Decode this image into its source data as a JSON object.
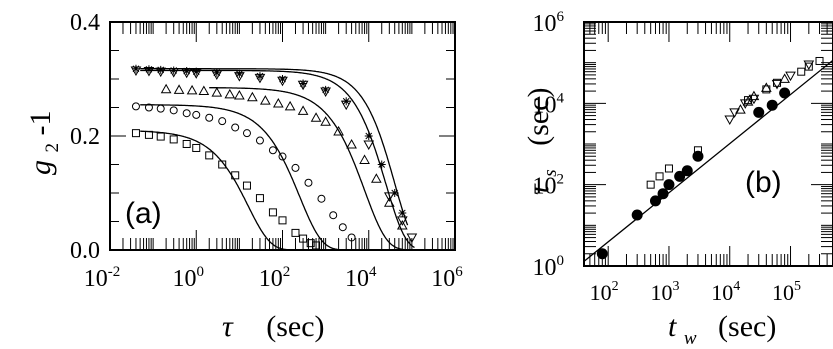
{
  "chart_data": [
    {
      "type": "scatter",
      "panel_label": "(a)",
      "xlabel": {
        "symbol": "τ",
        "unit": "(sec)"
      },
      "ylabel": {
        "base": "g",
        "subscript": "2",
        "suffix": "-1"
      },
      "xscale": "log",
      "yscale": "linear",
      "xlim": [
        0.01,
        1000000
      ],
      "ylim": [
        0.0,
        0.4
      ],
      "xticks": [
        {
          "mant": "10",
          "exp": "-2",
          "value": 0.01
        },
        {
          "mant": "10",
          "exp": "0",
          "value": 1
        },
        {
          "mant": "10",
          "exp": "2",
          "value": 100
        },
        {
          "mant": "10",
          "exp": "4",
          "value": 10000
        },
        {
          "mant": "10",
          "exp": "6",
          "value": 1000000
        }
      ],
      "yticks": [
        {
          "label": "0.0",
          "value": 0.0
        },
        {
          "label": "0.2",
          "value": 0.2
        },
        {
          "label": "0.4",
          "value": 0.4
        }
      ],
      "series": [
        {
          "marker": "square",
          "tau0": 16,
          "beta": 0.85,
          "amp": 0.21,
          "x": [
            0.04,
            0.08,
            0.15,
            0.3,
            0.6,
            1,
            2,
            4,
            8,
            15,
            30,
            60,
            100,
            200,
            300,
            450,
            600
          ],
          "y": [
            0.205,
            0.202,
            0.199,
            0.194,
            0.186,
            0.179,
            0.166,
            0.15,
            0.131,
            0.113,
            0.091,
            0.066,
            0.052,
            0.03,
            0.02,
            0.012,
            0.008
          ]
        },
        {
          "marker": "circle",
          "tau0": 250,
          "beta": 0.85,
          "amp": 0.255,
          "x": [
            0.04,
            0.08,
            0.15,
            0.3,
            0.6,
            1,
            2,
            4,
            8,
            15,
            30,
            60,
            100,
            200,
            400,
            800,
            1500,
            2500,
            4000
          ],
          "y": [
            0.252,
            0.25,
            0.248,
            0.245,
            0.24,
            0.237,
            0.232,
            0.226,
            0.215,
            0.205,
            0.192,
            0.175,
            0.164,
            0.144,
            0.118,
            0.09,
            0.061,
            0.04,
            0.022
          ]
        },
        {
          "marker": "triangle-up",
          "tau0": 8000,
          "beta": 0.85,
          "amp": 0.285,
          "x": [
            0.2,
            0.4,
            0.8,
            1.5,
            3,
            6,
            10,
            20,
            40,
            80,
            150,
            300,
            600,
            1000,
            2000,
            4000,
            8000,
            15000,
            30000,
            60000
          ],
          "y": [
            0.282,
            0.281,
            0.28,
            0.279,
            0.276,
            0.273,
            0.271,
            0.268,
            0.262,
            0.257,
            0.252,
            0.244,
            0.232,
            0.225,
            0.208,
            0.185,
            0.158,
            0.125,
            0.083,
            0.043
          ]
        },
        {
          "marker": "triangle-down",
          "tau0": 25000,
          "beta": 0.95,
          "amp": 0.315,
          "x": [
            0.04,
            0.08,
            0.15,
            0.3,
            0.6,
            1,
            3,
            10,
            30,
            100,
            300,
            1000,
            3000,
            10000,
            30000,
            60000,
            100000
          ],
          "y": [
            0.315,
            0.314,
            0.313,
            0.312,
            0.311,
            0.31,
            0.308,
            0.305,
            0.302,
            0.297,
            0.29,
            0.278,
            0.255,
            0.185,
            0.094,
            0.052,
            0.022
          ]
        },
        {
          "marker": "star",
          "tau0": 40000,
          "beta": 1.0,
          "amp": 0.318,
          "x": [
            0.04,
            0.08,
            0.15,
            0.3,
            0.6,
            1,
            3,
            10,
            30,
            100,
            300,
            1000,
            3000,
            10000,
            20000,
            40000,
            60000
          ],
          "y": [
            0.318,
            0.317,
            0.316,
            0.315,
            0.314,
            0.313,
            0.311,
            0.309,
            0.305,
            0.3,
            0.292,
            0.281,
            0.261,
            0.2,
            0.15,
            0.1,
            0.065
          ]
        }
      ]
    },
    {
      "type": "scatter",
      "panel_label": "(b)",
      "xlabel": {
        "base": "t",
        "subscript": "w",
        "unit": "(sec)"
      },
      "ylabel": {
        "base": "τ",
        "subscript": "s",
        "unit": "(sec)"
      },
      "xscale": "log",
      "yscale": "log",
      "xlim": [
        40,
        500000
      ],
      "ylim": [
        1,
        1000000
      ],
      "xticks": [
        {
          "mant": "10",
          "exp": "2",
          "value": 100
        },
        {
          "mant": "10",
          "exp": "3",
          "value": 1000
        },
        {
          "mant": "10",
          "exp": "4",
          "value": 10000
        },
        {
          "mant": "10",
          "exp": "5",
          "value": 100000
        }
      ],
      "yticks": [
        {
          "mant": "10",
          "exp": "0",
          "value": 1
        },
        {
          "mant": "10",
          "exp": "2",
          "value": 100
        },
        {
          "mant": "10",
          "exp": "4",
          "value": 10000
        },
        {
          "mant": "10",
          "exp": "6",
          "value": 1000000
        }
      ],
      "fit_line": {
        "x": [
          40,
          500000
        ],
        "y": [
          1.3,
          115000
        ]
      },
      "series": [
        {
          "marker": "filled-circle",
          "x": [
            80,
            300,
            600,
            800,
            1000,
            1500,
            2000,
            3000,
            30000,
            50000,
            80000
          ],
          "y": [
            2,
            18,
            40,
            60,
            100,
            160,
            220,
            500,
            6000,
            9000,
            18000
          ]
        },
        {
          "marker": "square",
          "x": [
            500,
            700,
            1000,
            3000,
            20000,
            40000,
            60000,
            150000,
            200000,
            300000
          ],
          "y": [
            100,
            160,
            250,
            700,
            12000,
            22000,
            32000,
            60000,
            80000,
            110000
          ]
        },
        {
          "marker": "triangle-up",
          "x": [
            15000,
            20000,
            25000,
            40000,
            80000
          ],
          "y": [
            7000,
            11000,
            15000,
            24000,
            40000
          ]
        },
        {
          "marker": "triangle-down",
          "x": [
            10000,
            12000,
            18000,
            25000,
            60000,
            100000,
            200000
          ],
          "y": [
            4000,
            6000,
            10000,
            13000,
            30000,
            48000,
            90000
          ]
        }
      ]
    }
  ]
}
